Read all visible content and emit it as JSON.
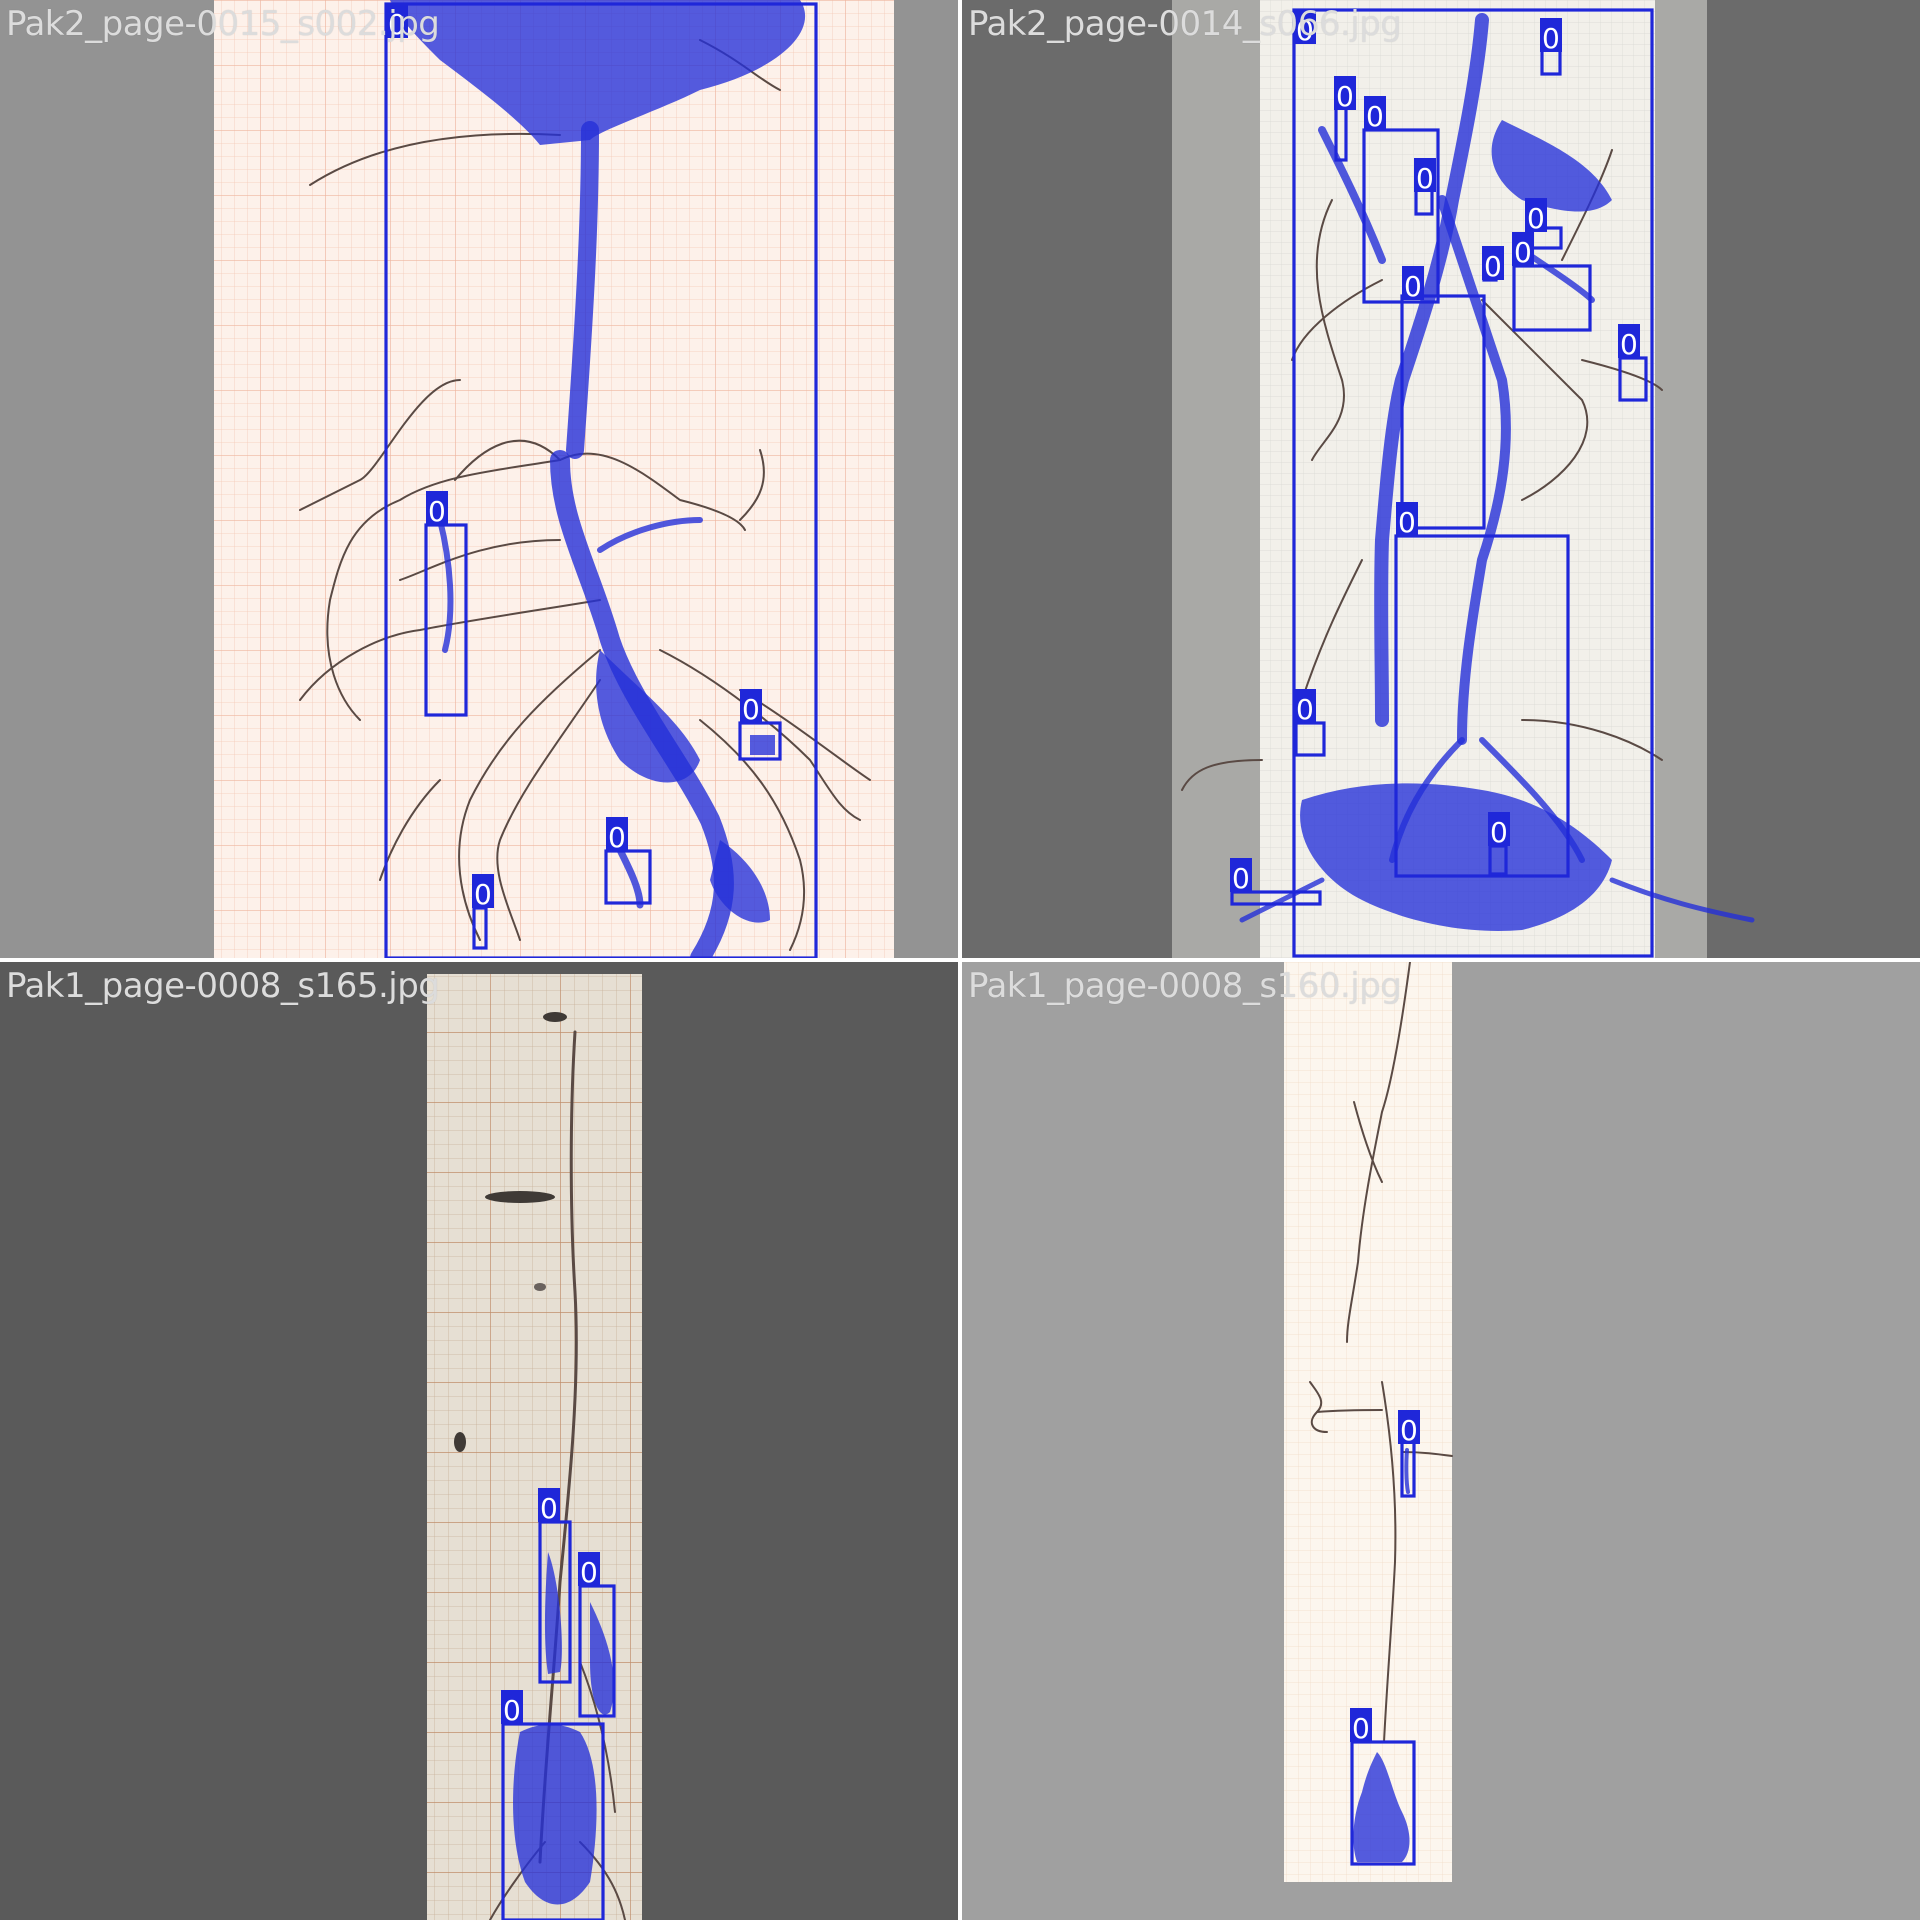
{
  "tiles": [
    {
      "filename": "Pak2_page-0015_s002.jpg",
      "class_label": "0",
      "detection_count": 6,
      "background_color": "#939393",
      "paper_color": "#fdf1ea"
    },
    {
      "filename": "Pak2_page-0014_s066.jpg",
      "class_label": "0",
      "detection_count": 15,
      "background_color": "#6b6b6b",
      "paper_color": "#f2f0ea"
    },
    {
      "filename": "Pak1_page-0008_s165.jpg",
      "class_label": "0",
      "detection_count": 3,
      "background_color": "#5a5a5a",
      "paper_color": "#e6dfd3"
    },
    {
      "filename": "Pak1_page-0008_s160.jpg",
      "class_label": "0",
      "detection_count": 2,
      "background_color": "#a0a0a0",
      "paper_color": "#fcf6ee"
    }
  ],
  "colors": {
    "detection": "#1f27d9",
    "mask": "#2430d8",
    "root": "#5a4a44",
    "label_text": "#dcdcdc"
  }
}
